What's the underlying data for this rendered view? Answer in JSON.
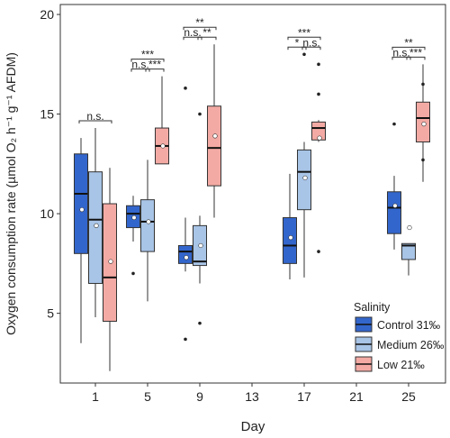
{
  "chart_data": {
    "type": "box",
    "xlabel": "Day",
    "ylabel": "Oxygen consumption rate (µmol O₂ h⁻¹ g⁻¹ AFDM)",
    "x_ticks": [
      1,
      5,
      9,
      13,
      17,
      21,
      25
    ],
    "y_ticks": [
      5,
      10,
      15,
      20
    ],
    "ylim": [
      1.5,
      20.5
    ],
    "grid": false,
    "legend": {
      "title": "Salinity",
      "placement": "bottom-right",
      "entries": [
        "Control 31‰",
        "Medium 26‰",
        "Low 21‰"
      ]
    },
    "series": [
      {
        "name": "Control 31‰",
        "color": "#3366cc",
        "boxes": [
          {
            "day": 1,
            "min": 3.5,
            "q1": 8.0,
            "median": 11.0,
            "q3": 13.0,
            "max": 13.8,
            "mean": 10.2,
            "outliers": []
          },
          {
            "day": 5,
            "min": 8.6,
            "q1": 9.3,
            "median": 10.0,
            "q3": 10.4,
            "max": 10.9,
            "mean": 9.8,
            "outliers": [
              7.0
            ]
          },
          {
            "day": 9,
            "min": 7.1,
            "q1": 7.5,
            "median": 8.1,
            "q3": 8.4,
            "max": 9.8,
            "mean": 7.8,
            "outliers": [
              16.3,
              3.7
            ]
          },
          {
            "day": 17,
            "min": 6.7,
            "q1": 7.5,
            "median": 8.4,
            "q3": 9.8,
            "max": 12.0,
            "mean": 8.8,
            "outliers": []
          },
          {
            "day": 25,
            "min": 8.2,
            "q1": 9.0,
            "median": 10.3,
            "q3": 11.1,
            "max": 11.9,
            "mean": 10.4,
            "outliers": [
              14.5
            ]
          }
        ]
      },
      {
        "name": "Medium 26‰",
        "color": "#a8c4e6",
        "boxes": [
          {
            "day": 1,
            "min": 4.8,
            "q1": 6.5,
            "median": 9.7,
            "q3": 12.1,
            "max": 14.3,
            "mean": 9.4,
            "outliers": []
          },
          {
            "day": 5,
            "min": 5.6,
            "q1": 8.1,
            "median": 9.6,
            "q3": 10.7,
            "max": 12.7,
            "mean": 9.6,
            "outliers": []
          },
          {
            "day": 9,
            "min": 6.5,
            "q1": 7.4,
            "median": 7.6,
            "q3": 9.4,
            "max": 9.9,
            "mean": 8.4,
            "outliers": [
              15.0,
              4.5
            ]
          },
          {
            "day": 17,
            "min": 6.8,
            "q1": 10.2,
            "median": 12.1,
            "q3": 13.2,
            "max": 13.6,
            "mean": 11.8,
            "outliers": [
              18.0
            ]
          },
          {
            "day": 25,
            "min": 6.9,
            "q1": 7.7,
            "median": 8.4,
            "q3": 8.5,
            "max": 8.5,
            "mean": 9.3,
            "outliers": []
          }
        ]
      },
      {
        "name": "Low 21‰",
        "color": "#f4aaa4",
        "boxes": [
          {
            "day": 1,
            "min": 2.1,
            "q1": 4.6,
            "median": 6.8,
            "q3": 10.5,
            "max": 12.3,
            "mean": 7.6,
            "outliers": []
          },
          {
            "day": 5,
            "min": 12.5,
            "q1": 12.5,
            "median": 13.4,
            "q3": 14.3,
            "max": 16.9,
            "mean": 13.4,
            "outliers": []
          },
          {
            "day": 9,
            "min": 9.8,
            "q1": 11.4,
            "median": 13.3,
            "q3": 15.4,
            "max": 18.5,
            "mean": 13.9,
            "outliers": []
          },
          {
            "day": 17,
            "min": 13.6,
            "q1": 13.7,
            "median": 14.3,
            "q3": 14.6,
            "max": 14.7,
            "mean": 13.8,
            "outliers": [
              17.5,
              16.0,
              8.1
            ]
          },
          {
            "day": 25,
            "min": 11.6,
            "q1": 13.6,
            "median": 14.8,
            "q3": 15.6,
            "max": 17.5,
            "mean": 14.5,
            "outliers": [
              16.5,
              12.7
            ]
          }
        ]
      }
    ],
    "significance": [
      {
        "day": 1,
        "from": 0,
        "to": 2,
        "label": "n.s.",
        "level": 0
      },
      {
        "day": 5,
        "from": 0,
        "to": 1,
        "label": "n.s.",
        "level": 0
      },
      {
        "day": 5,
        "from": 1,
        "to": 2,
        "label": "***",
        "level": 0
      },
      {
        "day": 5,
        "from": 0,
        "to": 2,
        "label": "***",
        "level": 1
      },
      {
        "day": 9,
        "from": 0,
        "to": 1,
        "label": "n.s.",
        "level": 0
      },
      {
        "day": 9,
        "from": 1,
        "to": 2,
        "label": "**",
        "level": 0
      },
      {
        "day": 9,
        "from": 0,
        "to": 2,
        "label": "**",
        "level": 1
      },
      {
        "day": 17,
        "from": 0,
        "to": 1,
        "label": "*",
        "level": 0
      },
      {
        "day": 17,
        "from": 1,
        "to": 2,
        "label": "n.s.",
        "level": 0
      },
      {
        "day": 17,
        "from": 0,
        "to": 2,
        "label": "***",
        "level": 1
      },
      {
        "day": 25,
        "from": 0,
        "to": 1,
        "label": "n.s.",
        "level": 0
      },
      {
        "day": 25,
        "from": 1,
        "to": 2,
        "label": "***",
        "level": 0
      },
      {
        "day": 25,
        "from": 0,
        "to": 2,
        "label": "**",
        "level": 1
      }
    ]
  }
}
